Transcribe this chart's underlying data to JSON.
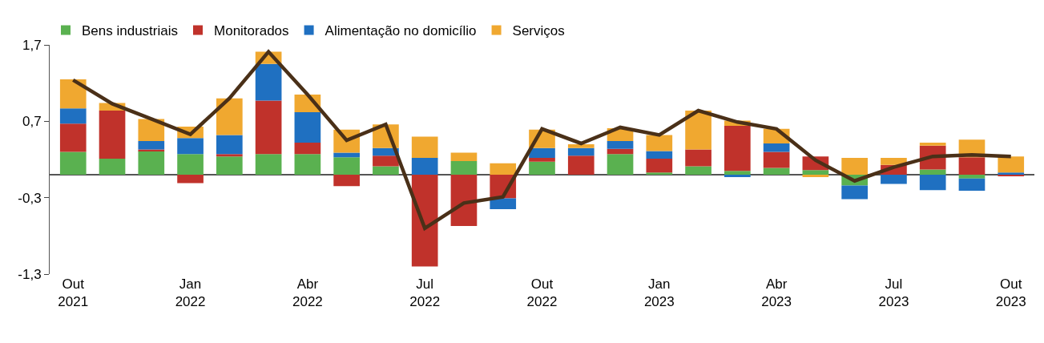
{
  "chart_data": {
    "type": "bar",
    "stacked": true,
    "categories": [
      "Out\n2021",
      null,
      null,
      "Jan\n2022",
      null,
      null,
      "Abr\n2022",
      null,
      null,
      "Jul\n2022",
      null,
      null,
      "Out\n2022",
      null,
      null,
      "Jan\n2023",
      null,
      null,
      "Abr\n2023",
      null,
      null,
      "Jul\n2023",
      null,
      null,
      "Out\n2023"
    ],
    "series": [
      {
        "name": "Bens industriais",
        "color": "#5ab150",
        "values": [
          0.3,
          0.21,
          0.31,
          0.27,
          0.24,
          0.27,
          0.27,
          0.23,
          0.11,
          0,
          0.18,
          0,
          0.17,
          0,
          0.27,
          0.03,
          0.11,
          0.05,
          0.09,
          0.06,
          -0.14,
          0,
          0.07,
          -0.05,
          0
        ]
      },
      {
        "name": "Monitorados",
        "color": "#c0322b",
        "values": [
          0.37,
          0.63,
          0.02,
          -0.11,
          0.03,
          0.7,
          0.15,
          -0.15,
          0.14,
          -1.2,
          -0.67,
          -0.31,
          0.05,
          0.25,
          0.07,
          0.18,
          0.22,
          0.59,
          0.21,
          0.18,
          0,
          0.13,
          0.31,
          0.23,
          -0.02
        ]
      },
      {
        "name": "Alimentação no domicílio",
        "color": "#1f70c1",
        "values": [
          0.2,
          0,
          0.11,
          0.21,
          0.25,
          0.48,
          0.4,
          0.06,
          0.1,
          0.22,
          0,
          -0.14,
          0.13,
          0.1,
          0.1,
          0.1,
          0,
          -0.03,
          0.11,
          0,
          -0.18,
          -0.12,
          -0.2,
          -0.16,
          0.03
        ]
      },
      {
        "name": "Serviços",
        "color": "#f0a830",
        "values": [
          0.38,
          0.1,
          0.29,
          0.15,
          0.48,
          0.16,
          0.23,
          0.3,
          0.31,
          0.28,
          0.11,
          0.15,
          0.24,
          0.05,
          0.17,
          0.21,
          0.51,
          0.07,
          0.19,
          -0.03,
          0.22,
          0.09,
          0.04,
          0.23,
          0.21
        ]
      },
      {
        "type": "line",
        "color": "#4a3018",
        "values": [
          1.24,
          0.93,
          0.73,
          0.53,
          1.0,
          1.61,
          1.05,
          0.45,
          0.66,
          -0.7,
          -0.37,
          -0.29,
          0.6,
          0.41,
          0.62,
          0.52,
          0.84,
          0.69,
          0.6,
          0.19,
          -0.08,
          0.1,
          0.24,
          0.26,
          0.24
        ]
      }
    ],
    "ylim": [
      -1.3,
      1.7
    ],
    "yticks": [
      {
        "value": 1.7,
        "label": "1,7"
      },
      {
        "value": 0.7,
        "label": "0,7"
      },
      {
        "value": -0.3,
        "label": "-0,3"
      },
      {
        "value": -1.3,
        "label": "-1,3"
      }
    ],
    "legend": "top left",
    "marker": "none"
  }
}
